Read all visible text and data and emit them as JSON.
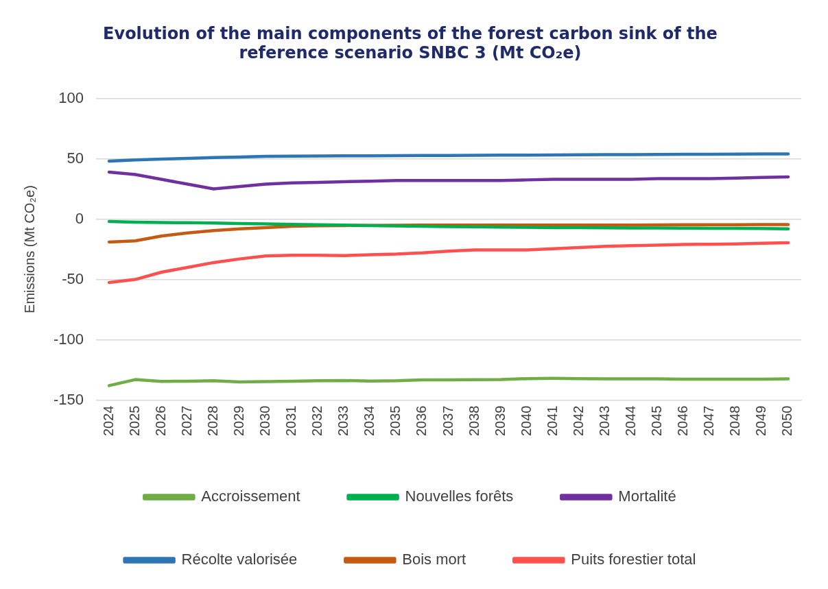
{
  "chart_data": {
    "type": "line",
    "title": "Evolution of the main components of the forest carbon sink of the reference scenario SNBC 3 (Mt CO₂e)",
    "ylabel": "Emissions (Mt CO₂e)",
    "categories": [
      "2024",
      "2025",
      "2026",
      "2027",
      "2028",
      "2029",
      "2030",
      "2031",
      "2032",
      "2033",
      "2034",
      "2035",
      "2036",
      "2037",
      "2038",
      "2039",
      "2040",
      "2041",
      "2042",
      "2043",
      "2044",
      "2045",
      "2046",
      "2047",
      "2048",
      "2049",
      "2050"
    ],
    "series": [
      {
        "name": "Accroissement",
        "color": "#70ad47",
        "values": [
          -138,
          -133,
          -134.5,
          -134.3,
          -134,
          -135,
          -134.6,
          -134.3,
          -134,
          -133.8,
          -134.2,
          -134,
          -133.3,
          -133.2,
          -133.1,
          -133,
          -132.2,
          -132,
          -132.2,
          -132.4,
          -132.4,
          -132.4,
          -132.6,
          -132.6,
          -132.6,
          -132.6,
          -132.4
        ]
      },
      {
        "name": "Nouvelles forêts",
        "color": "#00b050",
        "values": [
          -2,
          -2.5,
          -2.8,
          -3,
          -3.3,
          -3.6,
          -4,
          -4.3,
          -4.6,
          -5,
          -5.3,
          -5.6,
          -5.9,
          -6.2,
          -6.4,
          -6.6,
          -6.8,
          -7,
          -7.1,
          -7.2,
          -7.3,
          -7.4,
          -7.5,
          -7.6,
          -7.7,
          -7.8,
          -8
        ]
      },
      {
        "name": "Mortalité",
        "color": "#7030a0",
        "values": [
          39,
          37,
          33,
          29,
          25,
          27,
          29,
          30,
          30.5,
          31,
          31.5,
          32,
          32,
          32,
          32,
          32,
          32.5,
          33,
          33,
          33,
          33,
          33.5,
          33.5,
          33.5,
          34,
          34.5,
          35
        ]
      },
      {
        "name": "Récolte valorisée",
        "color": "#2e75b6",
        "values": [
          48,
          49,
          49.7,
          50.3,
          51,
          51.5,
          52,
          52.2,
          52.3,
          52.4,
          52.5,
          52.6,
          52.7,
          52.8,
          52.9,
          53,
          53.1,
          53.2,
          53.3,
          53.4,
          53.5,
          53.6,
          53.7,
          53.8,
          53.9,
          54,
          54
        ]
      },
      {
        "name": "Bois mort",
        "color": "#c55a11",
        "values": [
          -19,
          -18,
          -14,
          -11.5,
          -9.5,
          -8,
          -7,
          -6,
          -5.5,
          -5.3,
          -5.2,
          -5.1,
          -5,
          -5,
          -5,
          -5,
          -5,
          -5,
          -5,
          -5,
          -4.9,
          -4.8,
          -4.7,
          -4.6,
          -4.6,
          -4.5,
          -4.5
        ]
      },
      {
        "name": "Puits forestier total",
        "color": "#ff5050",
        "values": [
          -52.5,
          -50,
          -44,
          -40,
          -36,
          -33,
          -30.5,
          -30,
          -30,
          -30.2,
          -29.5,
          -29,
          -28,
          -26.5,
          -25.5,
          -25.5,
          -25.5,
          -24.5,
          -23.5,
          -22.5,
          -22,
          -21.5,
          -21,
          -20.8,
          -20.5,
          -20,
          -19.5
        ]
      }
    ],
    "ylim": [
      -150,
      100
    ],
    "yticks": [
      -150,
      -100,
      -50,
      0,
      50,
      100
    ],
    "grid": "y",
    "legend": "bottom",
    "marker": "none",
    "line_style": "solid"
  }
}
